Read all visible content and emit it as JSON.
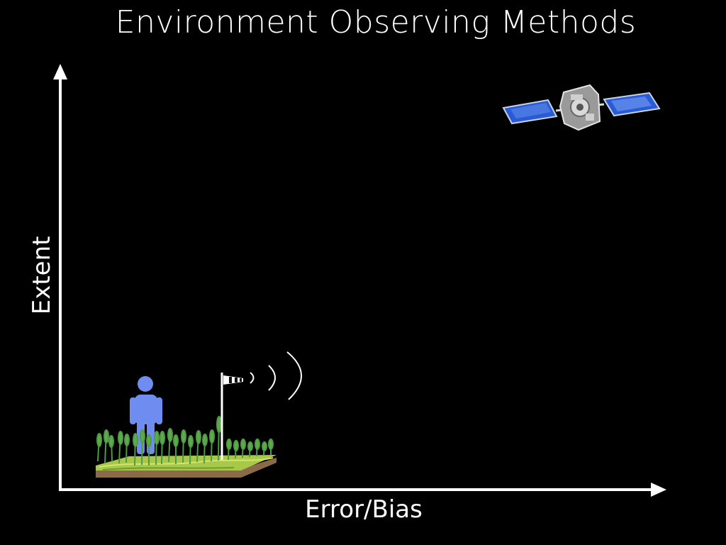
{
  "slide": {
    "title": "Environment Observing Methods",
    "x_axis_label": "Error/Bias",
    "y_axis_label": "Extent"
  },
  "colors": {
    "background": "#000000",
    "axis": "#ffffff",
    "person": "#6f8df0",
    "grass": "#4f9a45",
    "soil": "#8b6a4a",
    "solar_panel": "#2a5bd7"
  },
  "icons": {
    "person": "person-icon",
    "field": "field-plot-icon",
    "windsock": "windsock-icon",
    "signal": "signal-waves-icon",
    "satellite": "satellite-icon"
  }
}
